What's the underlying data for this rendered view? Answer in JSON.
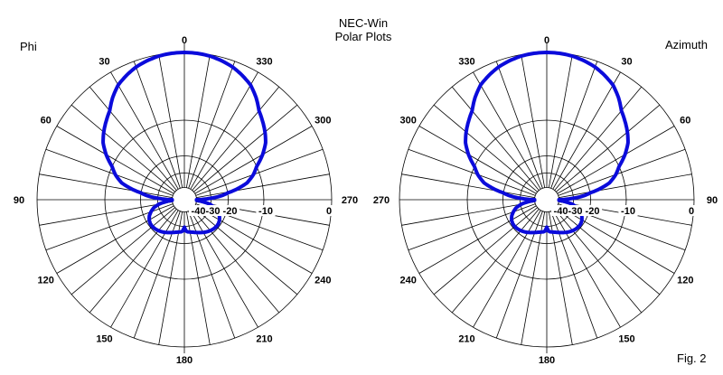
{
  "page": {
    "background": "#ffffff"
  },
  "header": {
    "title_line1": "NEC-Win",
    "title_line2": "Polar Plots"
  },
  "figure_caption": "Fig. 2",
  "colors": {
    "curve": "#0b0bdb",
    "grid": "#000000",
    "text": "#000000",
    "label_mask": "#ffffff"
  },
  "chart_data": {
    "type": "line",
    "projection": "polar",
    "grid": true,
    "plots": [
      {
        "name": "Phi",
        "rotation": "ccw",
        "angle_labels": [
          "0",
          "30",
          "60",
          "90",
          "120",
          "150",
          "180",
          "210",
          "240",
          "270",
          "300",
          "330"
        ]
      },
      {
        "name": "Azimuth",
        "rotation": "cw",
        "angle_labels": [
          "0",
          "30",
          "60",
          "90",
          "120",
          "150",
          "180",
          "210",
          "240",
          "270",
          "300",
          "330"
        ]
      }
    ],
    "radial_axis": {
      "unit": "dB",
      "min": -40,
      "max": 0,
      "ticks_db": [
        -40,
        -30,
        -20,
        -10,
        0
      ]
    },
    "spoke_step_deg": 10,
    "angle_label_step_deg": 30,
    "pattern_symmetric_mirror": true,
    "pattern_points_deg_db": [
      [
        0,
        0.0
      ],
      [
        5,
        -0.05
      ],
      [
        10,
        -0.2
      ],
      [
        15,
        -0.5
      ],
      [
        20,
        -0.9
      ],
      [
        25,
        -1.5
      ],
      [
        30,
        -2.2
      ],
      [
        35,
        -3.3
      ],
      [
        40,
        -4.6
      ],
      [
        45,
        -5.4
      ],
      [
        50,
        -6.2
      ],
      [
        55,
        -7.1
      ],
      [
        60,
        -8.4
      ],
      [
        65,
        -9.9
      ],
      [
        70,
        -11.7
      ],
      [
        75,
        -14.1
      ],
      [
        79,
        -17.6
      ],
      [
        82,
        -21.0
      ],
      [
        84,
        -24.0
      ],
      [
        86,
        -28.0
      ],
      [
        88,
        -33.0
      ],
      [
        90,
        -40.0
      ],
      [
        93,
        -40.0
      ],
      [
        96,
        -36.0
      ],
      [
        100,
        -30.5
      ],
      [
        105,
        -27.0
      ],
      [
        110,
        -24.8
      ],
      [
        115,
        -23.0
      ],
      [
        120,
        -21.9
      ],
      [
        125,
        -21.3
      ],
      [
        130,
        -21.2
      ],
      [
        135,
        -21.5
      ],
      [
        140,
        -22.0
      ],
      [
        145,
        -22.7
      ],
      [
        150,
        -23.5
      ],
      [
        155,
        -24.4
      ],
      [
        160,
        -25.2
      ],
      [
        165,
        -25.9
      ],
      [
        170,
        -26.4
      ],
      [
        174,
        -26.7
      ],
      [
        177,
        -27.3
      ],
      [
        180,
        -29.5
      ]
    ]
  }
}
